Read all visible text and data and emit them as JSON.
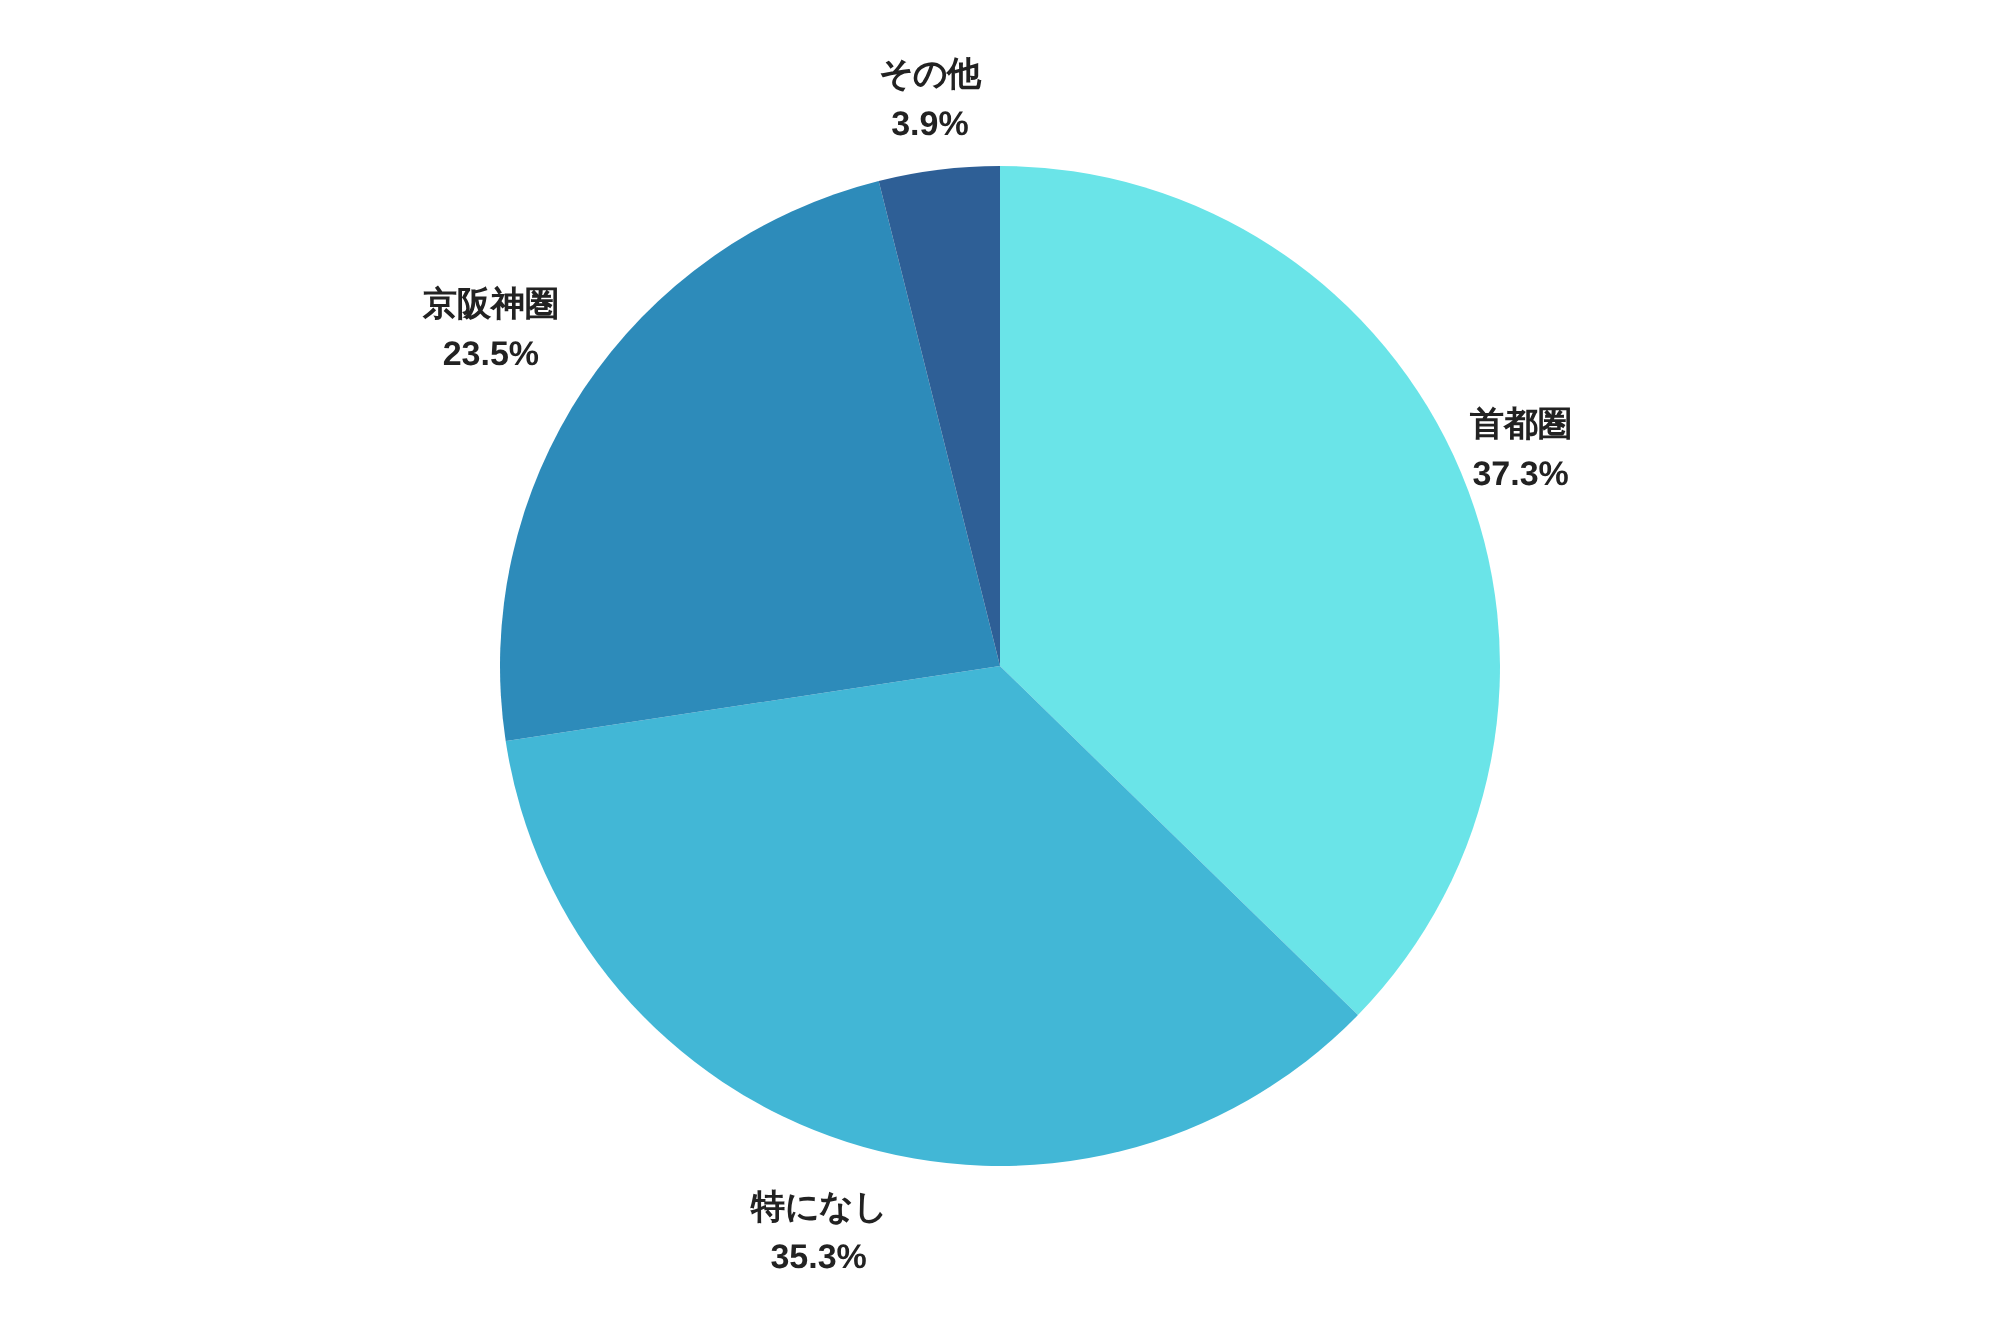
{
  "chart_data": {
    "type": "pie",
    "categories": [
      "首都圏",
      "特になし",
      "京阪神圏",
      "その他"
    ],
    "values": [
      37.3,
      35.3,
      23.5,
      3.9
    ],
    "colors": [
      "#6ae4e8",
      "#42b7d6",
      "#2d8bba",
      "#2e5f96"
    ],
    "value_labels": [
      "37.3%",
      "35.3%",
      "23.5%",
      "3.9%"
    ],
    "legend": false
  }
}
